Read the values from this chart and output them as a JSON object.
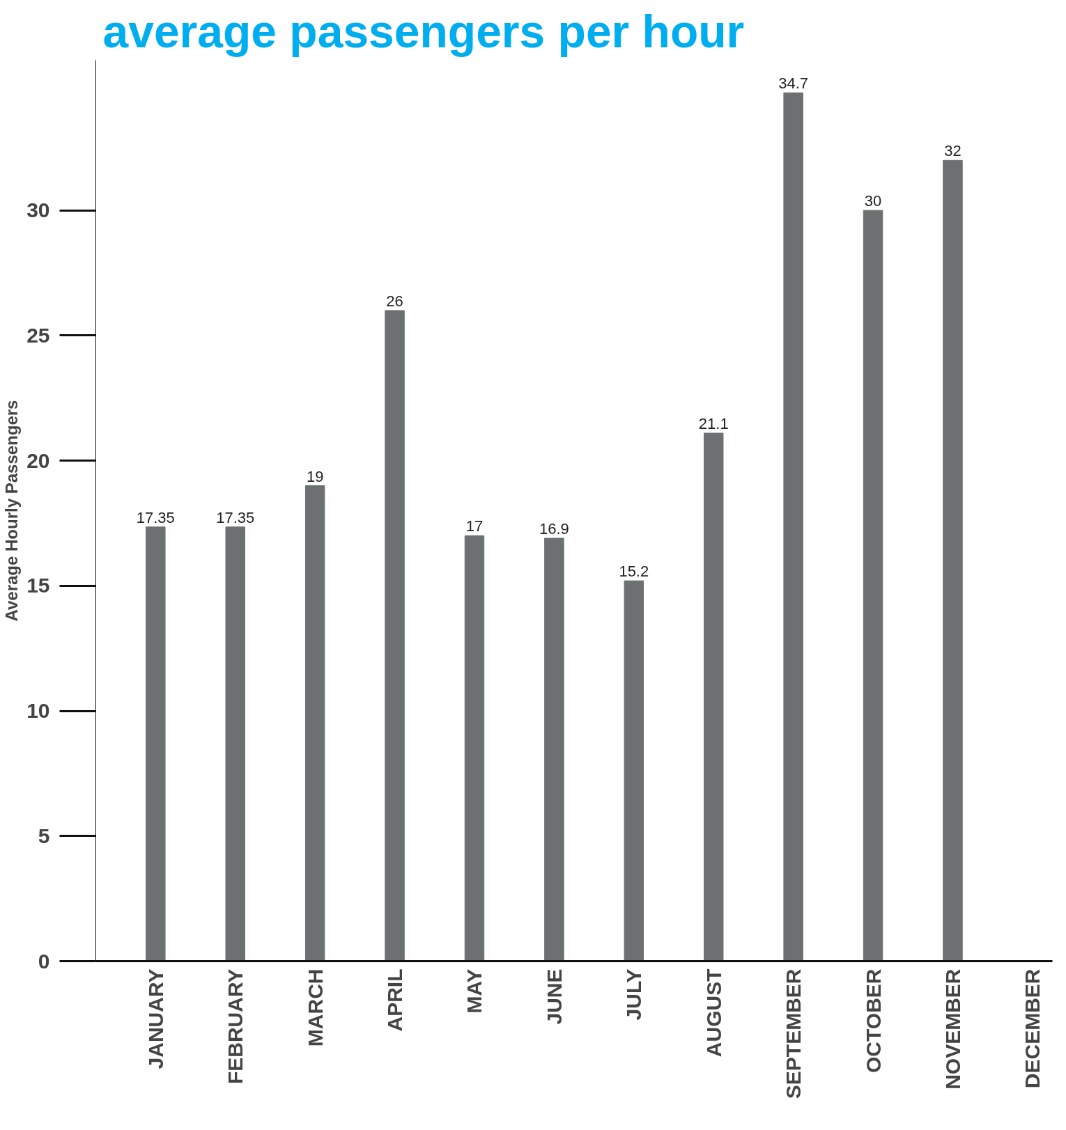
{
  "chart_data": {
    "type": "bar",
    "title": "average passengers per hour",
    "ylabel": "Average Hourly Passengers",
    "categories": [
      "JANUARY",
      "FEBRUARY",
      "MARCH",
      "APRIL",
      "MAY",
      "JUNE",
      "JULY",
      "AUGUST",
      "SEPTEMBER",
      "OCTOBER",
      "NOVEMBER",
      "DECEMBER"
    ],
    "values": [
      17.35,
      17.35,
      19,
      26,
      17,
      16.9,
      15.2,
      21.1,
      34.7,
      30,
      32,
      null
    ],
    "color": "#6d7070",
    "ylim": [
      0,
      36
    ],
    "yticks": [
      0,
      5,
      10,
      15,
      20,
      25,
      30
    ],
    "grid": false,
    "data_labels": true
  }
}
